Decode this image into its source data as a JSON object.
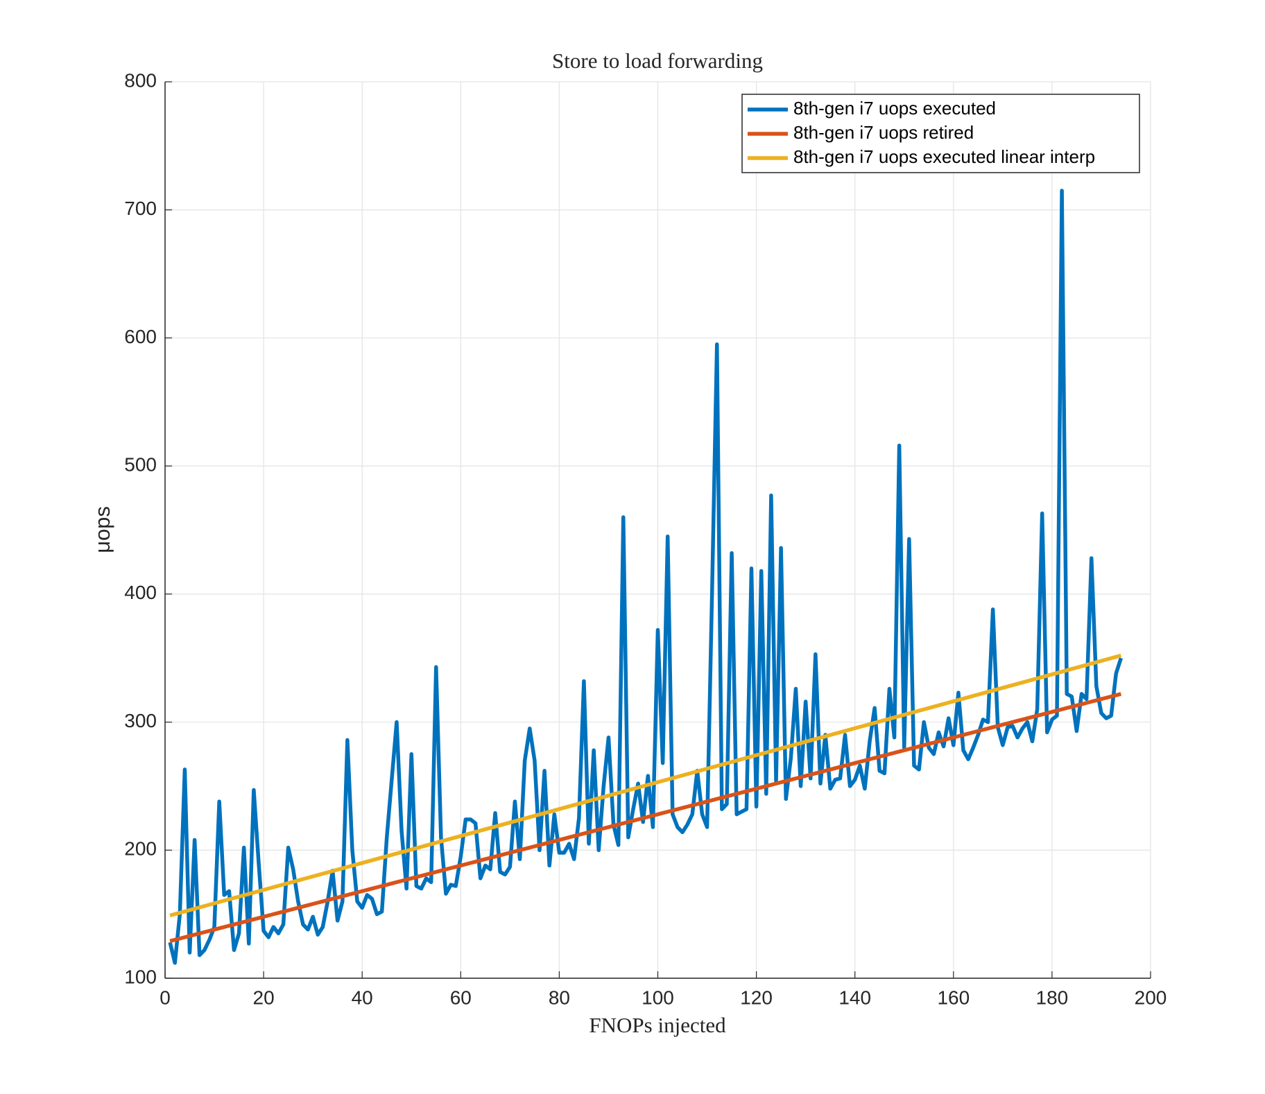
{
  "chart_data": {
    "type": "line",
    "title": "Store to load forwarding",
    "xlabel": "FNOPs injected",
    "ylabel": "μops",
    "xlim": [
      0,
      200
    ],
    "xticks": [
      0,
      20,
      40,
      60,
      80,
      100,
      120,
      140,
      160,
      180,
      200
    ],
    "ylim": [
      100,
      800
    ],
    "yticks": [
      100,
      200,
      300,
      400,
      500,
      600,
      700,
      800
    ],
    "grid": true,
    "legend": "northeast",
    "x": [
      1,
      2,
      3,
      4,
      5,
      6,
      7,
      8,
      9,
      10,
      11,
      12,
      13,
      14,
      15,
      16,
      17,
      18,
      19,
      20,
      21,
      22,
      23,
      24,
      25,
      26,
      27,
      28,
      29,
      30,
      31,
      32,
      33,
      34,
      35,
      36,
      37,
      38,
      39,
      40,
      41,
      42,
      43,
      44,
      45,
      46,
      47,
      48,
      49,
      50,
      51,
      52,
      53,
      54,
      55,
      56,
      57,
      58,
      59,
      60,
      61,
      62,
      63,
      64,
      65,
      66,
      67,
      68,
      69,
      70,
      71,
      72,
      73,
      74,
      75,
      76,
      77,
      78,
      79,
      80,
      81,
      82,
      83,
      84,
      85,
      86,
      87,
      88,
      89,
      90,
      91,
      92,
      93,
      94,
      95,
      96,
      97,
      98,
      99,
      100,
      101,
      102,
      103,
      104,
      105,
      106,
      107,
      108,
      109,
      110,
      111,
      112,
      113,
      114,
      115,
      116,
      117,
      118,
      119,
      120,
      121,
      122,
      123,
      124,
      125,
      126,
      127,
      128,
      129,
      130,
      131,
      132,
      133,
      134,
      135,
      136,
      137,
      138,
      139,
      140,
      141,
      142,
      143,
      144,
      145,
      146,
      147,
      148,
      149,
      150,
      151,
      152,
      153,
      154,
      155,
      156,
      157,
      158,
      159,
      160,
      161,
      162,
      163,
      164,
      165,
      166,
      167,
      168,
      169,
      170,
      171,
      172,
      173,
      174,
      175,
      176,
      177,
      178,
      179,
      180,
      181,
      182,
      183,
      184,
      185,
      186,
      187,
      188,
      189,
      190,
      191,
      192,
      193,
      194
    ],
    "series": [
      {
        "name": "8th-gen i7 uops executed",
        "color": "#0072BD",
        "values": [
          128,
          112,
          150,
          263,
          120,
          208,
          118,
          122,
          130,
          140,
          238,
          165,
          168,
          122,
          135,
          202,
          127,
          247,
          190,
          137,
          132,
          140,
          135,
          142,
          202,
          185,
          160,
          142,
          138,
          148,
          134,
          140,
          160,
          184,
          145,
          160,
          286,
          200,
          160,
          155,
          165,
          162,
          150,
          152,
          210,
          255,
          300,
          215,
          170,
          275,
          172,
          170,
          178,
          175,
          343,
          210,
          166,
          173,
          172,
          195,
          224,
          224,
          221,
          178,
          188,
          185,
          229,
          183,
          181,
          187,
          238,
          193,
          270,
          295,
          270,
          200,
          262,
          188,
          228,
          198,
          198,
          205,
          193,
          225,
          332,
          205,
          278,
          200,
          250,
          288,
          220,
          204,
          460,
          210,
          232,
          252,
          222,
          258,
          218,
          372,
          268,
          445,
          228,
          218,
          214,
          220,
          228,
          262,
          228,
          218,
          400,
          595,
          232,
          236,
          432,
          228,
          230,
          232,
          420,
          234,
          418,
          244,
          477,
          254,
          436,
          240,
          272,
          326,
          250,
          316,
          256,
          353,
          252,
          290,
          248,
          255,
          256,
          290,
          250,
          255,
          266,
          248,
          285,
          311,
          262,
          260,
          326,
          288,
          516,
          280,
          443,
          266,
          263,
          300,
          280,
          275,
          292,
          281,
          303,
          282,
          323,
          278,
          271,
          280,
          290,
          302,
          300,
          388,
          296,
          282,
          296,
          297,
          288,
          295,
          300,
          285,
          310,
          463,
          292,
          302,
          305,
          715,
          322,
          320,
          293,
          322,
          318,
          428,
          328,
          307,
          303,
          305,
          338,
          350
        ]
      },
      {
        "name": "8th-gen i7 uops retired",
        "color": "#D95319",
        "values": [
          129,
          130,
          131,
          132,
          133,
          134,
          135,
          136,
          137,
          138,
          139,
          140,
          141,
          142,
          143,
          144,
          145,
          146,
          147,
          148,
          149,
          150,
          151,
          152,
          153,
          154,
          155,
          156,
          157,
          158,
          159,
          160,
          161,
          162,
          163,
          164,
          165,
          166,
          167,
          168,
          169,
          170,
          171,
          172,
          173,
          174,
          175,
          176,
          177,
          178,
          179,
          180,
          181,
          182,
          183,
          184,
          185,
          186,
          187,
          188,
          189,
          190,
          191,
          192,
          193,
          194,
          195,
          196,
          197,
          198,
          199,
          200,
          201,
          202,
          203,
          204,
          205,
          206,
          207,
          208,
          209,
          210,
          211,
          212,
          213,
          214,
          215,
          216,
          217,
          218,
          219,
          220,
          221,
          222,
          223,
          224,
          225,
          226,
          227,
          228,
          229,
          230,
          231,
          232,
          233,
          234,
          235,
          236,
          237,
          238,
          239,
          240,
          241,
          242,
          243,
          244,
          245,
          246,
          247,
          248,
          249,
          250,
          251,
          252,
          253,
          254,
          255,
          256,
          257,
          258,
          259,
          260,
          261,
          262,
          263,
          264,
          265,
          266,
          267,
          268,
          269,
          270,
          271,
          272,
          273,
          274,
          275,
          276,
          277,
          278,
          279,
          280,
          281,
          282,
          283,
          284,
          285,
          286,
          287,
          288,
          289,
          290,
          291,
          292,
          293,
          294,
          295,
          296,
          297,
          298,
          299,
          300,
          301,
          302,
          303,
          304,
          305,
          306,
          307,
          308,
          309,
          310,
          311,
          312,
          313,
          314,
          315,
          316,
          317,
          318,
          319,
          320,
          321,
          322
        ]
      },
      {
        "name": "8th-gen i7 uops executed linear interp",
        "color": "#EDB120",
        "x": [
          1,
          194
        ],
        "values": [
          149,
          352
        ]
      }
    ]
  }
}
